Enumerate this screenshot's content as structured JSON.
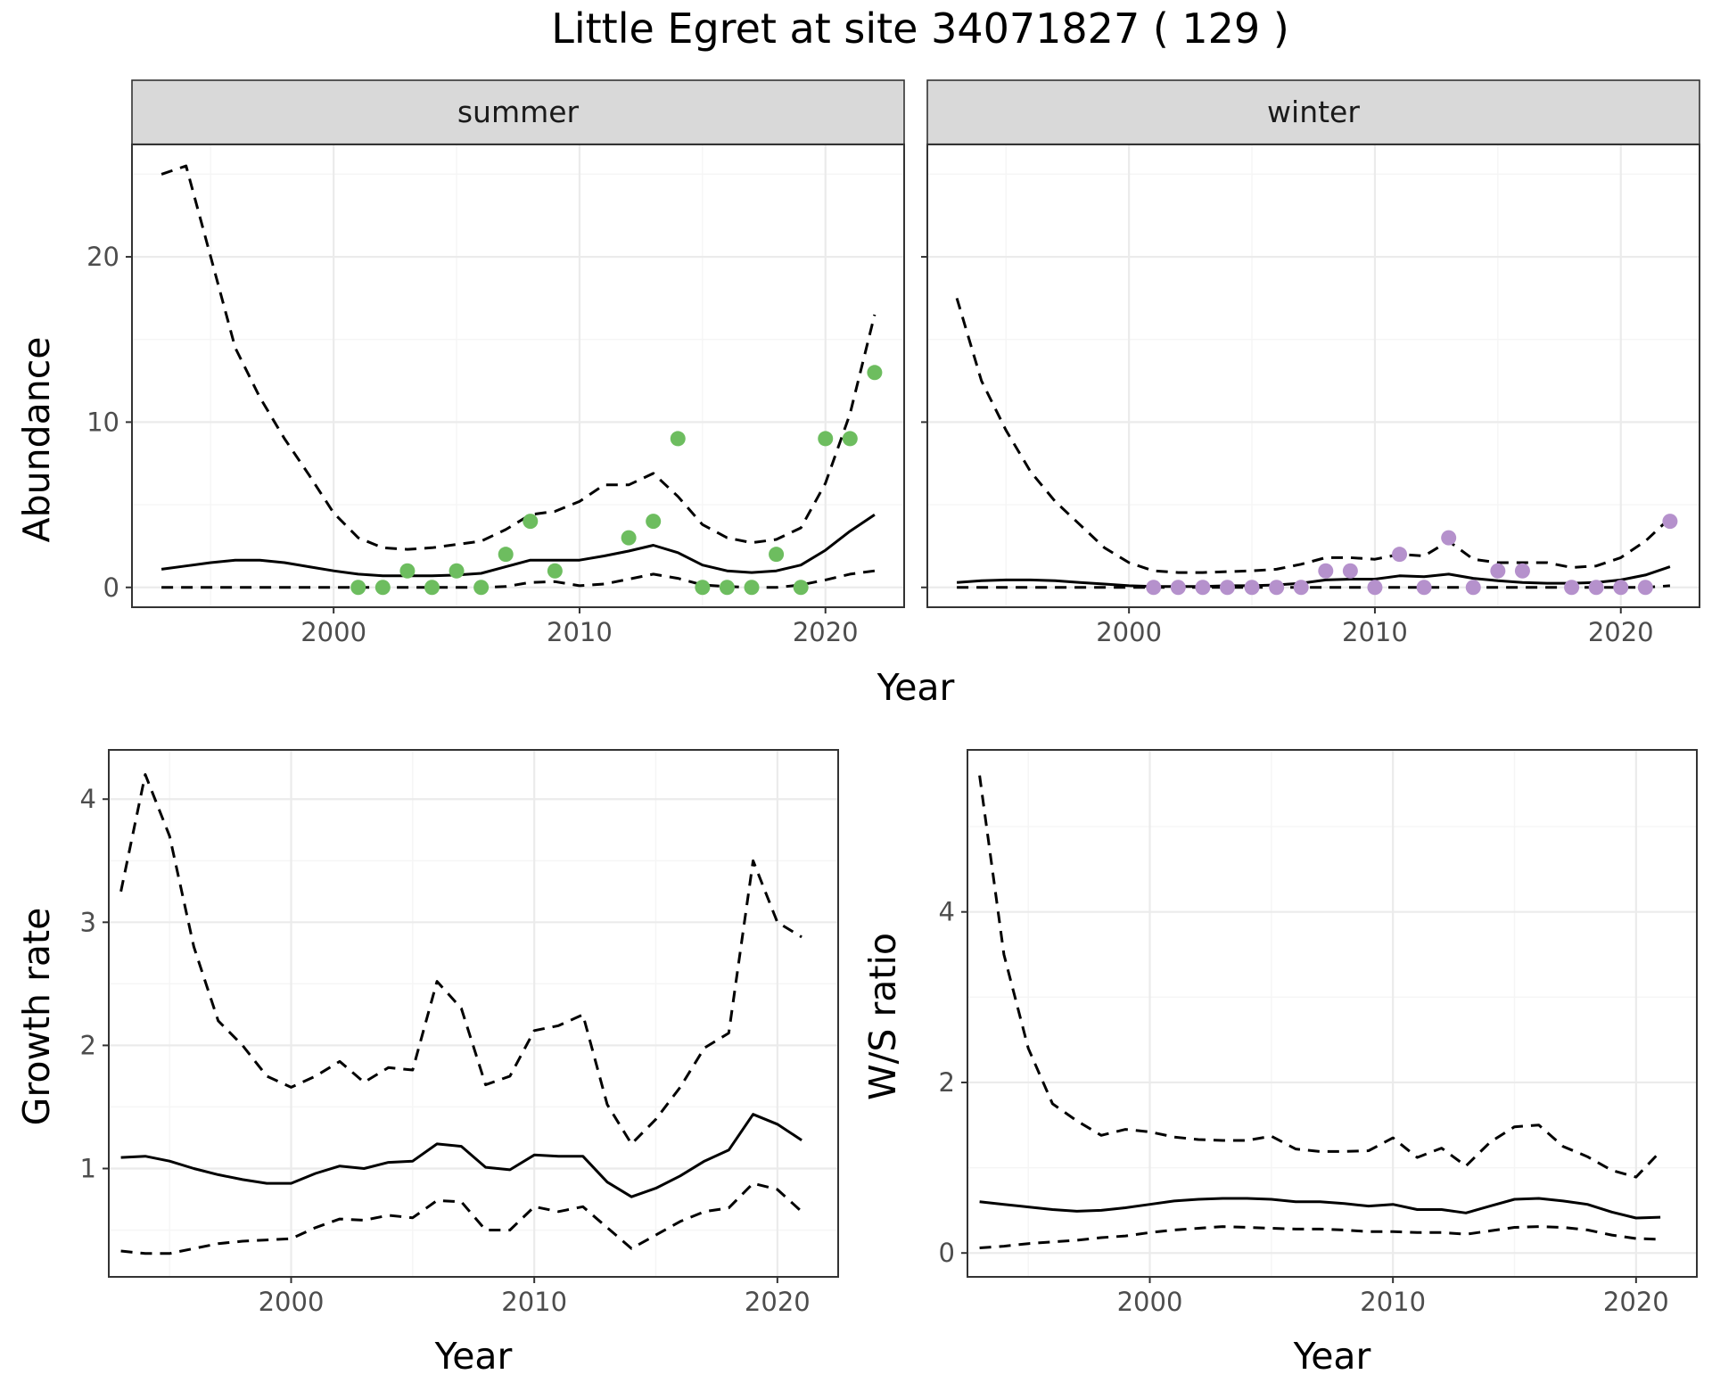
{
  "title": "Little Egret at site 34071827 ( 129 )",
  "colors": {
    "summer_points": "#6dbd5f",
    "winter_points": "#b591cc",
    "lines": "#000000",
    "strip_fill": "#d9d9d9",
    "grid_major": "#ebebeb",
    "grid_minor": "#f5f5f5"
  },
  "chart_data": [
    {
      "type": "line",
      "panel": "summer",
      "facet_label": "summer",
      "xlabel": "Year",
      "ylabel": "Abundance",
      "xlim": [
        1991.8,
        2023.2
      ],
      "ylim": [
        -1.2,
        26.8
      ],
      "xticks": [
        2000,
        2010,
        2020
      ],
      "yticks": [
        0,
        10,
        20
      ],
      "grid": true,
      "series": [
        {
          "role": "mean",
          "style": "solid",
          "x": [
            1993,
            1994,
            1995,
            1996,
            1997,
            1998,
            1999,
            2000,
            2001,
            2002,
            2003,
            2004,
            2005,
            2006,
            2007,
            2008,
            2009,
            2010,
            2011,
            2012,
            2013,
            2014,
            2015,
            2016,
            2017,
            2018,
            2019,
            2020,
            2021,
            2022
          ],
          "y": [
            1.1,
            1.3,
            1.5,
            1.65,
            1.65,
            1.5,
            1.25,
            1.0,
            0.8,
            0.7,
            0.7,
            0.7,
            0.75,
            0.85,
            1.25,
            1.65,
            1.65,
            1.65,
            1.9,
            2.2,
            2.55,
            2.1,
            1.35,
            1.0,
            0.9,
            1.0,
            1.35,
            2.25,
            3.4,
            4.4
          ]
        },
        {
          "role": "upper",
          "style": "dashed",
          "x": [
            1993,
            1994,
            1995,
            1996,
            1997,
            1998,
            1999,
            2000,
            2001,
            2002,
            2003,
            2004,
            2005,
            2006,
            2007,
            2008,
            2009,
            2010,
            2011,
            2012,
            2013,
            2014,
            2015,
            2016,
            2017,
            2018,
            2019,
            2020,
            2021,
            2022
          ],
          "y": [
            25.0,
            25.5,
            20.0,
            14.5,
            11.5,
            9.0,
            6.8,
            4.5,
            3.0,
            2.4,
            2.3,
            2.4,
            2.6,
            2.8,
            3.5,
            4.4,
            4.6,
            5.2,
            6.2,
            6.2,
            6.9,
            5.5,
            3.8,
            3.0,
            2.7,
            2.9,
            3.6,
            6.3,
            10.5,
            16.5
          ]
        },
        {
          "role": "lower",
          "style": "dashed",
          "x": [
            1993,
            1994,
            1995,
            1996,
            1997,
            1998,
            1999,
            2000,
            2001,
            2002,
            2003,
            2004,
            2005,
            2006,
            2007,
            2008,
            2009,
            2010,
            2011,
            2012,
            2013,
            2014,
            2015,
            2016,
            2017,
            2018,
            2019,
            2020,
            2021,
            2022
          ],
          "y": [
            0,
            0,
            0,
            0,
            0,
            0,
            0,
            0,
            0,
            0,
            0,
            0,
            0,
            0,
            0.05,
            0.3,
            0.35,
            0.1,
            0.2,
            0.5,
            0.8,
            0.55,
            0.15,
            0.05,
            0,
            0,
            0.15,
            0.45,
            0.8,
            1.0
          ]
        },
        {
          "role": "observed",
          "style": "points",
          "color": "#6dbd5f",
          "x": [
            2001,
            2002,
            2003,
            2004,
            2005,
            2006,
            2007,
            2008,
            2009,
            2012,
            2013,
            2014,
            2015,
            2016,
            2017,
            2018,
            2019,
            2020,
            2021,
            2022
          ],
          "y": [
            0,
            0,
            1,
            0,
            1,
            0,
            2,
            4,
            1,
            3,
            4,
            9,
            0,
            0,
            0,
            2,
            0,
            9,
            9,
            13
          ]
        }
      ]
    },
    {
      "type": "line",
      "panel": "winter",
      "facet_label": "winter",
      "xlabel": "Year",
      "ylabel": "Abundance",
      "xlim": [
        1991.8,
        2023.2
      ],
      "ylim": [
        -1.2,
        26.8
      ],
      "xticks": [
        2000,
        2010,
        2020
      ],
      "yticks": [
        0,
        10,
        20
      ],
      "grid": true,
      "series": [
        {
          "role": "mean",
          "style": "solid",
          "x": [
            1993,
            1994,
            1995,
            1996,
            1997,
            1998,
            1999,
            2000,
            2001,
            2002,
            2003,
            2004,
            2005,
            2006,
            2007,
            2008,
            2009,
            2010,
            2011,
            2012,
            2013,
            2014,
            2015,
            2016,
            2017,
            2018,
            2019,
            2020,
            2021,
            2022
          ],
          "y": [
            0.3,
            0.4,
            0.45,
            0.45,
            0.4,
            0.3,
            0.2,
            0.1,
            0.05,
            0.05,
            0.05,
            0.1,
            0.1,
            0.15,
            0.25,
            0.45,
            0.5,
            0.5,
            0.7,
            0.65,
            0.8,
            0.55,
            0.4,
            0.3,
            0.25,
            0.25,
            0.3,
            0.45,
            0.75,
            1.25
          ]
        },
        {
          "role": "upper",
          "style": "dashed",
          "x": [
            1993,
            1994,
            1995,
            1996,
            1997,
            1998,
            1999,
            2000,
            2001,
            2002,
            2003,
            2004,
            2005,
            2006,
            2007,
            2008,
            2009,
            2010,
            2011,
            2012,
            2013,
            2014,
            2015,
            2016,
            2017,
            2018,
            2019,
            2020,
            2021,
            2022
          ],
          "y": [
            17.5,
            12.5,
            9.5,
            7.0,
            5.2,
            3.8,
            2.4,
            1.5,
            1.0,
            0.9,
            0.9,
            0.95,
            1.0,
            1.1,
            1.4,
            1.8,
            1.8,
            1.7,
            2.0,
            1.9,
            2.8,
            1.7,
            1.5,
            1.5,
            1.5,
            1.2,
            1.3,
            1.8,
            2.8,
            4.2
          ]
        },
        {
          "role": "lower",
          "style": "dashed",
          "x": [
            1993,
            1994,
            1995,
            1996,
            1997,
            1998,
            1999,
            2000,
            2001,
            2002,
            2003,
            2004,
            2005,
            2006,
            2007,
            2008,
            2009,
            2010,
            2011,
            2012,
            2013,
            2014,
            2015,
            2016,
            2017,
            2018,
            2019,
            2020,
            2021,
            2022
          ],
          "y": [
            0,
            0,
            0,
            0,
            0,
            0,
            0,
            0,
            0,
            0,
            0,
            0,
            0,
            0,
            0,
            0,
            0,
            0,
            0,
            0,
            0,
            0,
            0,
            0,
            0,
            0,
            0,
            0,
            0,
            0.1
          ]
        },
        {
          "role": "observed",
          "style": "points",
          "color": "#b591cc",
          "x": [
            2001,
            2002,
            2003,
            2004,
            2005,
            2006,
            2007,
            2008,
            2009,
            2010,
            2011,
            2012,
            2013,
            2014,
            2015,
            2016,
            2018,
            2019,
            2020,
            2021,
            2022
          ],
          "y": [
            0,
            0,
            0,
            0,
            0,
            0,
            0,
            1,
            1,
            0,
            2,
            0,
            3,
            0,
            1,
            1,
            0,
            0,
            0,
            0,
            4
          ]
        }
      ]
    },
    {
      "type": "line",
      "panel": "growth",
      "xlabel": "Year",
      "ylabel": "Growth rate",
      "xlim": [
        1992.5,
        2022.5
      ],
      "ylim": [
        0.12,
        4.4
      ],
      "xticks": [
        2000,
        2010,
        2020
      ],
      "yticks": [
        1,
        2,
        3,
        4
      ],
      "grid": true,
      "series": [
        {
          "role": "mean",
          "style": "solid",
          "x": [
            1993,
            1994,
            1995,
            1996,
            1997,
            1998,
            1999,
            2000,
            2001,
            2002,
            2003,
            2004,
            2005,
            2006,
            2007,
            2008,
            2009,
            2010,
            2011,
            2012,
            2013,
            2014,
            2015,
            2016,
            2017,
            2018,
            2019,
            2020,
            2021
          ],
          "y": [
            1.09,
            1.1,
            1.06,
            1.0,
            0.95,
            0.91,
            0.88,
            0.88,
            0.96,
            1.02,
            1.0,
            1.05,
            1.06,
            1.2,
            1.18,
            1.01,
            0.99,
            1.11,
            1.1,
            1.1,
            0.89,
            0.77,
            0.84,
            0.94,
            1.06,
            1.15,
            1.44,
            1.36,
            1.23
          ]
        },
        {
          "role": "upper",
          "style": "dashed",
          "x": [
            1993,
            1994,
            1995,
            1996,
            1997,
            1998,
            1999,
            2000,
            2001,
            2002,
            2003,
            2004,
            2005,
            2006,
            2007,
            2008,
            2009,
            2010,
            2011,
            2012,
            2013,
            2014,
            2015,
            2016,
            2017,
            2018,
            2019,
            2020,
            2021
          ],
          "y": [
            3.25,
            4.2,
            3.7,
            2.8,
            2.2,
            2.0,
            1.75,
            1.66,
            1.75,
            1.87,
            1.7,
            1.82,
            1.8,
            2.52,
            2.3,
            1.68,
            1.75,
            2.12,
            2.16,
            2.25,
            1.52,
            1.2,
            1.4,
            1.66,
            1.98,
            2.1,
            3.5,
            3.0,
            2.88
          ]
        },
        {
          "role": "lower",
          "style": "dashed",
          "x": [
            1993,
            1994,
            1995,
            1996,
            1997,
            1998,
            1999,
            2000,
            2001,
            2002,
            2003,
            2004,
            2005,
            2006,
            2007,
            2008,
            2009,
            2010,
            2011,
            2012,
            2013,
            2014,
            2015,
            2016,
            2017,
            2018,
            2019,
            2020,
            2021
          ],
          "y": [
            0.33,
            0.31,
            0.31,
            0.35,
            0.39,
            0.41,
            0.42,
            0.43,
            0.52,
            0.59,
            0.58,
            0.62,
            0.6,
            0.74,
            0.73,
            0.5,
            0.5,
            0.69,
            0.65,
            0.69,
            0.52,
            0.35,
            0.46,
            0.57,
            0.65,
            0.68,
            0.88,
            0.83,
            0.65
          ]
        }
      ]
    },
    {
      "type": "line",
      "panel": "ws_ratio",
      "xlabel": "Year",
      "ylabel": "W/S ratio",
      "xlim": [
        1992.5,
        2022.5
      ],
      "ylim": [
        -0.28,
        5.9
      ],
      "xticks": [
        2000,
        2010,
        2020
      ],
      "yticks": [
        0,
        2,
        4
      ],
      "grid": true,
      "series": [
        {
          "role": "mean",
          "style": "solid",
          "x": [
            1993,
            1994,
            1995,
            1996,
            1997,
            1998,
            1999,
            2000,
            2001,
            2002,
            2003,
            2004,
            2005,
            2006,
            2007,
            2008,
            2009,
            2010,
            2011,
            2012,
            2013,
            2014,
            2015,
            2016,
            2017,
            2018,
            2019,
            2020,
            2021
          ],
          "y": [
            0.6,
            0.57,
            0.54,
            0.51,
            0.49,
            0.5,
            0.53,
            0.57,
            0.61,
            0.63,
            0.64,
            0.64,
            0.63,
            0.6,
            0.6,
            0.58,
            0.55,
            0.57,
            0.51,
            0.51,
            0.47,
            0.55,
            0.63,
            0.64,
            0.61,
            0.57,
            0.48,
            0.41,
            0.42
          ]
        },
        {
          "role": "upper",
          "style": "dashed",
          "x": [
            1993,
            1994,
            1995,
            1996,
            1997,
            1998,
            1999,
            2000,
            2001,
            2002,
            2003,
            2004,
            2005,
            2006,
            2007,
            2008,
            2009,
            2010,
            2011,
            2012,
            2013,
            2014,
            2015,
            2016,
            2017,
            2018,
            2019,
            2020,
            2021
          ],
          "y": [
            5.6,
            3.5,
            2.4,
            1.75,
            1.55,
            1.38,
            1.45,
            1.42,
            1.36,
            1.33,
            1.32,
            1.32,
            1.37,
            1.22,
            1.19,
            1.19,
            1.2,
            1.35,
            1.12,
            1.23,
            1.02,
            1.3,
            1.48,
            1.5,
            1.25,
            1.13,
            0.97,
            0.89,
            1.19
          ]
        },
        {
          "role": "lower",
          "style": "dashed",
          "x": [
            1993,
            1994,
            1995,
            1996,
            1997,
            1998,
            1999,
            2000,
            2001,
            2002,
            2003,
            2004,
            2005,
            2006,
            2007,
            2008,
            2009,
            2010,
            2011,
            2012,
            2013,
            2014,
            2015,
            2016,
            2017,
            2018,
            2019,
            2020,
            2021
          ],
          "y": [
            0.06,
            0.08,
            0.11,
            0.13,
            0.15,
            0.18,
            0.2,
            0.24,
            0.27,
            0.29,
            0.31,
            0.3,
            0.29,
            0.28,
            0.28,
            0.27,
            0.25,
            0.25,
            0.24,
            0.24,
            0.22,
            0.26,
            0.3,
            0.31,
            0.3,
            0.27,
            0.21,
            0.17,
            0.16
          ]
        }
      ]
    }
  ]
}
